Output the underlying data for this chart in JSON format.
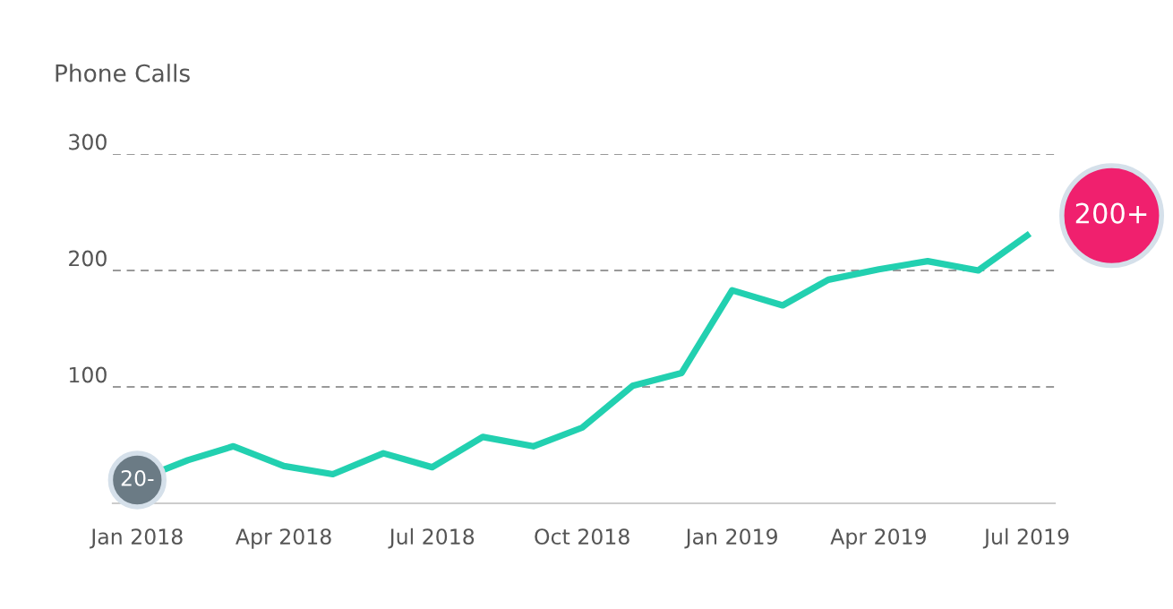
{
  "chart_data": {
    "type": "line",
    "title": "Phone Calls",
    "x": [
      "2018-01",
      "2018-02",
      "2018-03",
      "2018-04",
      "2018-05",
      "2018-06",
      "2018-07",
      "2018-08",
      "2018-09",
      "2018-10",
      "2018-11",
      "2018-12",
      "2019-01",
      "2019-02",
      "2019-03",
      "2019-04",
      "2019-05",
      "2019-06",
      "2019-07"
    ],
    "series": [
      {
        "color": "#22d0b0",
        "values": [
          20,
          37,
          49,
          32,
          25,
          43,
          31,
          57,
          49,
          65,
          101,
          112,
          183,
          170,
          192,
          201,
          208,
          200,
          230
        ]
      }
    ],
    "xlim": [
      "2017-12-17",
      "2019-07-18"
    ],
    "xticks": [
      {
        "value": "2018-01",
        "label": "Jan 2018"
      },
      {
        "value": "2018-04",
        "label": "Apr 2018"
      },
      {
        "value": "2018-07",
        "label": "Jul 2018"
      },
      {
        "value": "2018-10",
        "label": "Oct 2018"
      },
      {
        "value": "2019-01",
        "label": "Jan 2019"
      },
      {
        "value": "2019-04",
        "label": "Apr 2019"
      },
      {
        "value": "2019-07",
        "label": "Jul 2019"
      }
    ],
    "ylim": [
      0,
      300
    ],
    "yticks": [
      100,
      200,
      300
    ],
    "grid": "y",
    "legend": false,
    "marker": "none",
    "line_style": "solid",
    "annotations": [
      {
        "text": "20-",
        "x": "2018-01",
        "y": 20
      },
      {
        "text": "200+",
        "x": "2019-07",
        "y": 230
      }
    ]
  }
}
